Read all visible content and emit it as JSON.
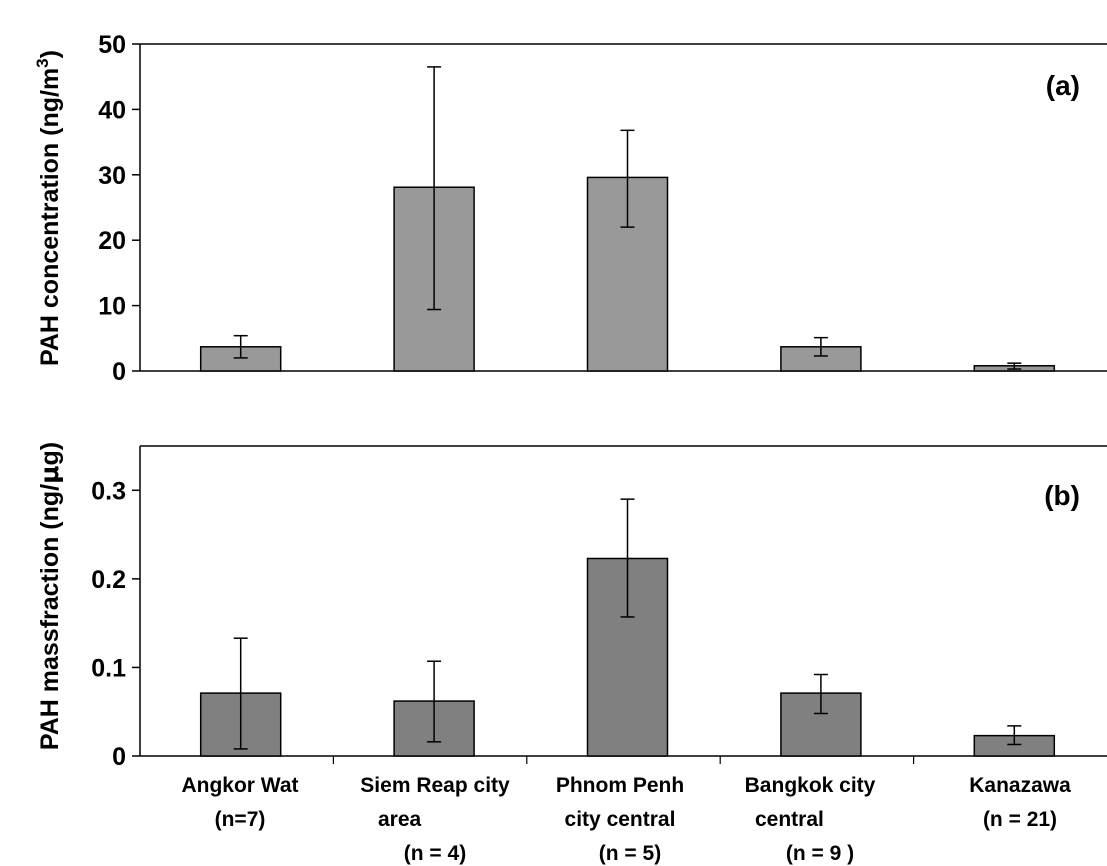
{
  "chart_data": [
    {
      "type": "bar",
      "panel_label": "(a)",
      "ylabel": "PAH concentration (ng/m",
      "ylabel_sup": "3",
      "ylabel_tail": ")",
      "ylim": [
        0,
        50
      ],
      "yticks": [
        "0",
        "10",
        "20",
        "30",
        "40",
        "50"
      ],
      "categories": [
        "Angkor Wat",
        "Siem Reap city area",
        "Phnom Penh city central",
        "Bangkok city central",
        "Kanazawa"
      ],
      "values": [
        3.7,
        28.1,
        29.6,
        3.7,
        0.8
      ],
      "error_low": [
        2.0,
        9.4,
        22.0,
        2.3,
        0.3
      ],
      "error_high": [
        5.4,
        46.5,
        36.8,
        5.1,
        1.2
      ],
      "bar_color": "#999999",
      "grid": false
    },
    {
      "type": "bar",
      "panel_label": "(b)",
      "ylabel": "PAH massfraction (ng/",
      "ylabel_mu": "μ",
      "ylabel_tail": "g)",
      "ylim": [
        0,
        0.35
      ],
      "yticks": [
        "0",
        "0.1",
        "0.2",
        "0.3"
      ],
      "categories": [
        "Angkor Wat",
        "Siem Reap city area",
        "Phnom Penh city central",
        "Bangkok city central",
        "Kanazawa"
      ],
      "values": [
        0.071,
        0.062,
        0.223,
        0.071,
        0.023
      ],
      "error_low": [
        0.008,
        0.016,
        0.157,
        0.048,
        0.013
      ],
      "error_high": [
        0.133,
        0.107,
        0.29,
        0.092,
        0.034
      ],
      "bar_color": "#808080",
      "grid": false
    }
  ],
  "category_labels": [
    {
      "line1": "Angkor Wat",
      "line2": "(n=7)",
      "line3": ""
    },
    {
      "line1": "Siem Reap city",
      "line2": "area",
      "line3": "(n = 4)"
    },
    {
      "line1": "Phnom Penh",
      "line2": "city central",
      "line3": "(n = 5)"
    },
    {
      "line1": "Bangkok city",
      "line2": "central",
      "line3": "(n = 9 )"
    },
    {
      "line1": "Kanazawa",
      "line2": "(n = 21)",
      "line3": ""
    }
  ]
}
